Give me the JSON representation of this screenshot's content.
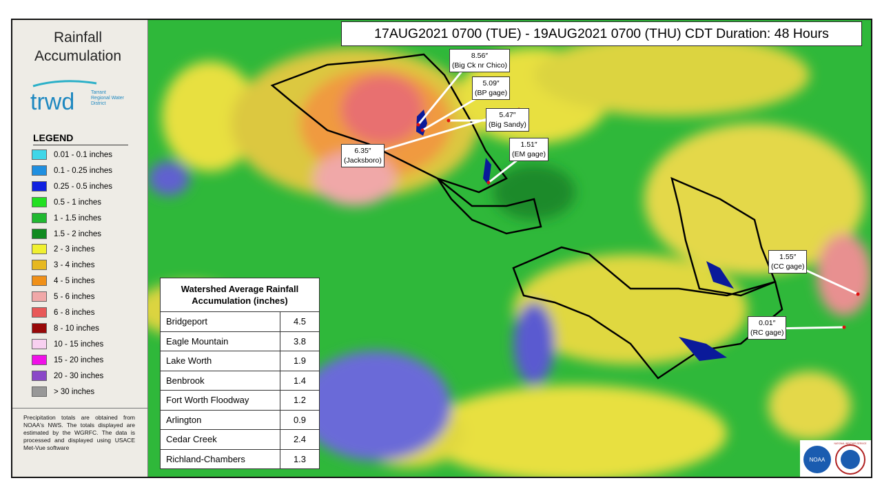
{
  "sidebar": {
    "title": "Rainfall Accumulation",
    "logo": {
      "name": "trwd",
      "text": "Tarrant Regional Water District"
    },
    "legend": {
      "title": "LEGEND",
      "items": [
        {
          "label": "0.01 - 0.1 inches",
          "color": "#3fd6e8"
        },
        {
          "label": "0.1 - 0.25 inches",
          "color": "#1f8fe0"
        },
        {
          "label": "0.25 - 0.5 inches",
          "color": "#1020e0"
        },
        {
          "label": "0.5 - 1 inches",
          "color": "#22e022"
        },
        {
          "label": "1 - 1.5 inches",
          "color": "#20b830"
        },
        {
          "label": "1.5 - 2 inches",
          "color": "#108a20"
        },
        {
          "label": "2 - 3 inches",
          "color": "#f0f030"
        },
        {
          "label": "3 - 4 inches",
          "color": "#e6b820"
        },
        {
          "label": "4 - 5 inches",
          "color": "#f09018"
        },
        {
          "label": "5 - 6 inches",
          "color": "#f0a8a8"
        },
        {
          "label": "6 - 8 inches",
          "color": "#e85858"
        },
        {
          "label": "8 - 10 inches",
          "color": "#980808"
        },
        {
          "label": "10 - 15 inches",
          "color": "#f8d0f0"
        },
        {
          "label": "15 - 20 inches",
          "color": "#f010e8"
        },
        {
          "label": "20 - 30 inches",
          "color": "#8a48c8"
        },
        {
          "label": "> 30 inches",
          "color": "#989898"
        }
      ]
    },
    "note": "Precipitation totals are obtained from NOAA's NWS. The totals displayed are estimated by the WGRFC. The data is processed and displayed using USACE Met-Vue software"
  },
  "header": {
    "title": "17AUG2021 0700 (TUE) - 19AUG2021 0700 (THU) CDT Duration: 48 Hours"
  },
  "table": {
    "title": "Watershed Average Rainfall Accumulation (inches)",
    "rows": [
      [
        "Bridgeport",
        4.5
      ],
      [
        "Eagle Mountain",
        3.8
      ],
      [
        "Lake Worth",
        1.9
      ],
      [
        "Benbrook",
        1.4
      ],
      [
        "Fort Worth Floodway",
        1.2
      ],
      [
        "Arlington",
        0.9
      ],
      [
        "Cedar Creek",
        2.4
      ],
      [
        "Richland-Chambers",
        1.3
      ]
    ]
  },
  "callouts": [
    {
      "value": "8.56″",
      "site": "(Big Ck nr Chico)"
    },
    {
      "value": "5.09″",
      "site": "(BP gage)"
    },
    {
      "value": "5.47″",
      "site": "(Big Sandy)"
    },
    {
      "value": "1.51″",
      "site": "(EM gage)"
    },
    {
      "value": "6.35″",
      "site": "(Jacksboro)"
    },
    {
      "value": "1.55″",
      "site": "(CC gage)"
    },
    {
      "value": "0.01″",
      "site": "(RC gage)"
    }
  ],
  "logos": {
    "noaa": "NOAA",
    "nws": "NATIONAL WEATHER SERVICE"
  }
}
